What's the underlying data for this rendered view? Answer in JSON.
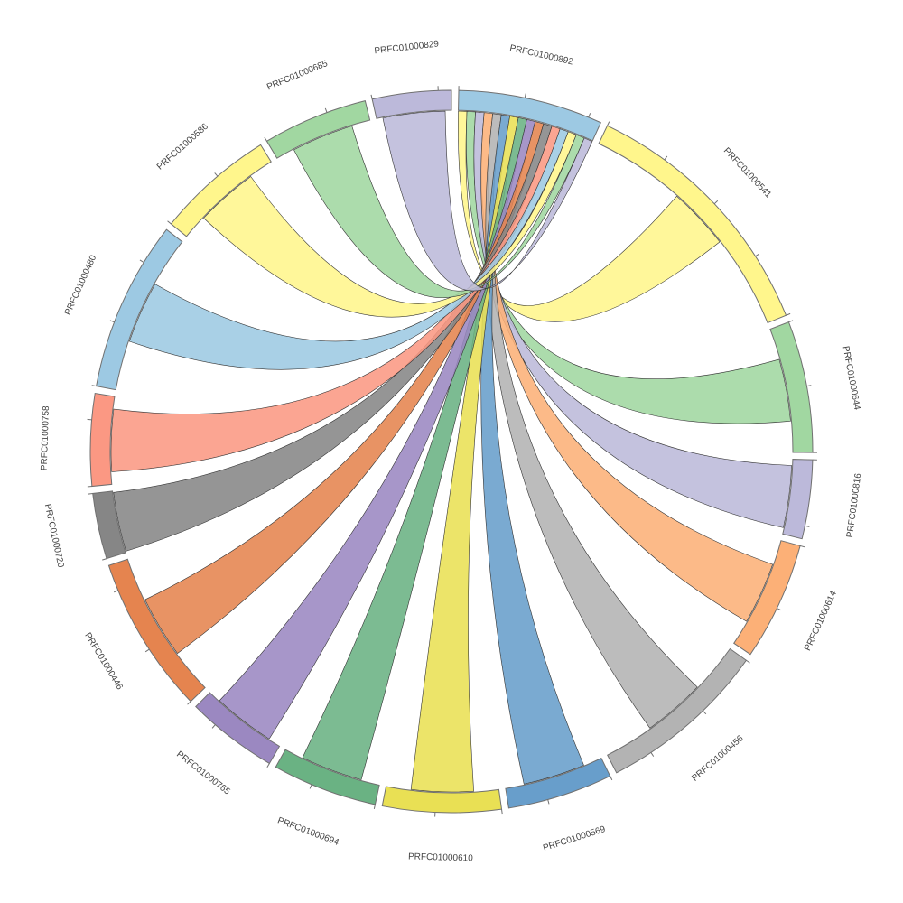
{
  "chart_data": {
    "type": "chord",
    "hub": "PRFC01000892",
    "segments": [
      {
        "name": "PRFC01000892",
        "color": "#9dc9e3",
        "value": 11
      },
      {
        "name": "PRFC01000541",
        "color": "#fff68c",
        "value": 20
      },
      {
        "name": "PRFC01000644",
        "color": "#a1d7a1",
        "value": 10
      },
      {
        "name": "PRFC01000816",
        "color": "#bcb9da",
        "value": 6
      },
      {
        "name": "PRFC01000614",
        "color": "#fcb077",
        "value": 9
      },
      {
        "name": "PRFC01000456",
        "color": "#b3b3b3",
        "value": 13
      },
      {
        "name": "PRFC01000569",
        "color": "#689ecb",
        "value": 8
      },
      {
        "name": "PRFC01000610",
        "color": "#e9e054",
        "value": 9
      },
      {
        "name": "PRFC01000694",
        "color": "#6ab283",
        "value": 8
      },
      {
        "name": "PRFC01000765",
        "color": "#9b88c1",
        "value": 7
      },
      {
        "name": "PRFC01000446",
        "color": "#e5844f",
        "value": 12
      },
      {
        "name": "PRFC01000720",
        "color": "#868686",
        "value": 5
      },
      {
        "name": "PRFC01000758",
        "color": "#fb9883",
        "value": 7
      },
      {
        "name": "PRFC01000480",
        "color": "#9dc9e3",
        "value": 13
      },
      {
        "name": "PRFC01000586",
        "color": "#fff68c",
        "value": 9
      },
      {
        "name": "PRFC01000685",
        "color": "#a1d7a1",
        "value": 8
      },
      {
        "name": "PRFC01000829",
        "color": "#bcb9da",
        "value": 6
      }
    ],
    "links": [
      {
        "source": "PRFC01000892",
        "target": "PRFC01000541",
        "value": 5
      },
      {
        "source": "PRFC01000892",
        "target": "PRFC01000644",
        "value": 5
      },
      {
        "source": "PRFC01000892",
        "target": "PRFC01000816",
        "value": 5
      },
      {
        "source": "PRFC01000892",
        "target": "PRFC01000614",
        "value": 5
      },
      {
        "source": "PRFC01000892",
        "target": "PRFC01000456",
        "value": 5
      },
      {
        "source": "PRFC01000892",
        "target": "PRFC01000569",
        "value": 5
      },
      {
        "source": "PRFC01000892",
        "target": "PRFC01000610",
        "value": 5
      },
      {
        "source": "PRFC01000892",
        "target": "PRFC01000694",
        "value": 5
      },
      {
        "source": "PRFC01000892",
        "target": "PRFC01000765",
        "value": 5
      },
      {
        "source": "PRFC01000892",
        "target": "PRFC01000446",
        "value": 5
      },
      {
        "source": "PRFC01000892",
        "target": "PRFC01000720",
        "value": 5
      },
      {
        "source": "PRFC01000892",
        "target": "PRFC01000758",
        "value": 5
      },
      {
        "source": "PRFC01000892",
        "target": "PRFC01000480",
        "value": 5
      },
      {
        "source": "PRFC01000892",
        "target": "PRFC01000586",
        "value": 5
      },
      {
        "source": "PRFC01000892",
        "target": "PRFC01000685",
        "value": 5
      },
      {
        "source": "PRFC01000892",
        "target": "PRFC01000829",
        "value": 5
      }
    ]
  }
}
